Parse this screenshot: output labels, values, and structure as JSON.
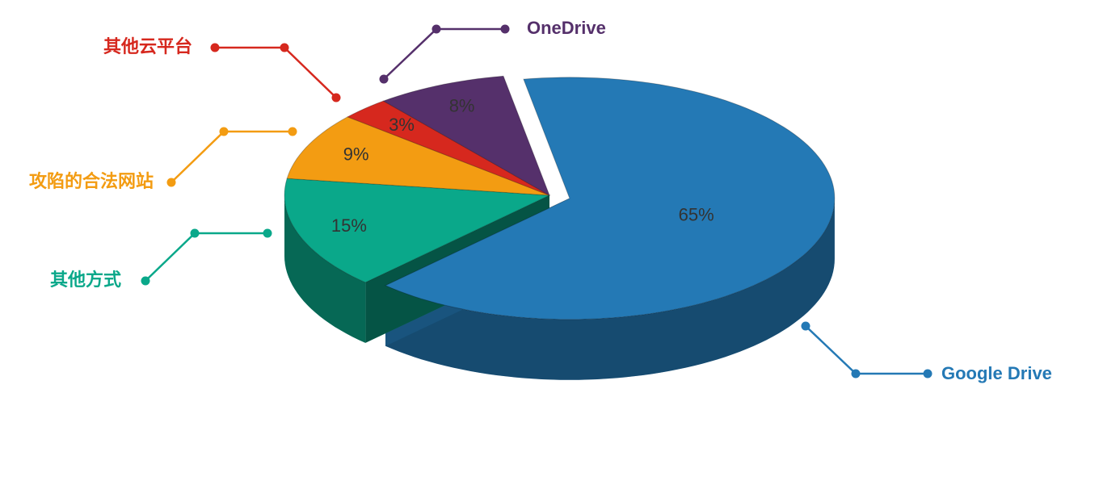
{
  "chart_data": {
    "type": "pie",
    "categories": [
      "Google Drive",
      "其他方式",
      "攻陷的合法网站",
      "其他云平台",
      "OneDrive"
    ],
    "values": [
      65,
      15,
      9,
      3,
      8
    ],
    "value_labels": [
      "65%",
      "15%",
      "9%",
      "3%",
      "8%"
    ],
    "colors": [
      "#2479b5",
      "#0aa88a",
      "#f39c12",
      "#d6281e",
      "#55306b"
    ]
  }
}
